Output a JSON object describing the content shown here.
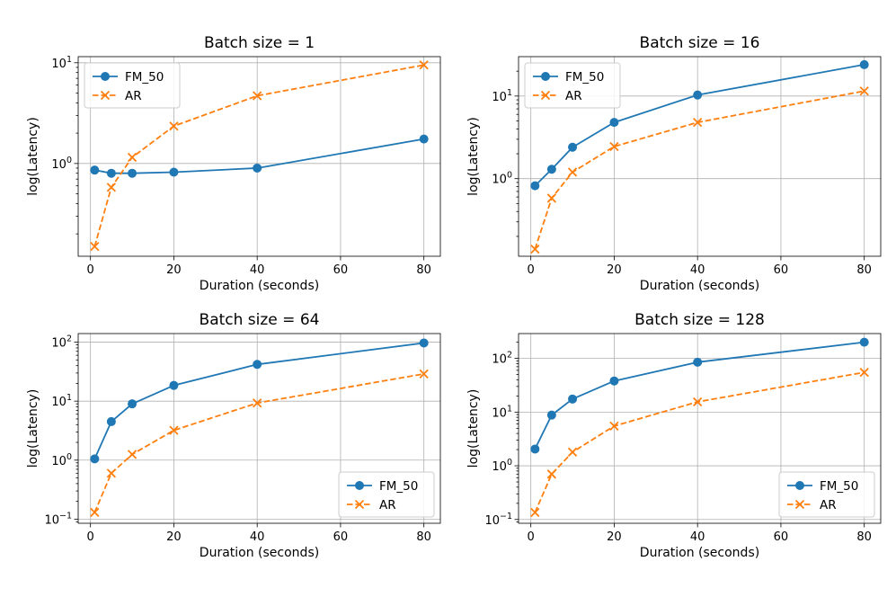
{
  "chart_data": [
    {
      "type": "line",
      "title": "Batch size = 1",
      "xlabel": "Duration (seconds)",
      "ylabel": "log(Latency)",
      "yscale": "log",
      "xlim": [
        -2.95,
        83.95
      ],
      "ylim": [
        0.12,
        11.5
      ],
      "xticks": [
        0,
        20,
        40,
        60,
        80
      ],
      "xtick_labels": [
        "0",
        "20",
        "40",
        "60",
        "80"
      ],
      "yticks": [
        1,
        10
      ],
      "ytick_labels": [
        {
          "base": "10",
          "exp": "0"
        },
        {
          "base": "10",
          "exp": "1"
        }
      ],
      "grid": true,
      "legend_position": "upper left",
      "x": [
        1,
        5,
        10,
        20,
        40,
        80
      ],
      "series": [
        {
          "name": "FM_50",
          "values": [
            0.86,
            0.8,
            0.8,
            0.82,
            0.9,
            1.75
          ],
          "color": "#1f77b4",
          "marker": "circle",
          "linestyle": "solid"
        },
        {
          "name": "AR",
          "values": [
            0.15,
            0.58,
            1.15,
            2.35,
            4.7,
            9.5
          ],
          "color": "#ff7f0e",
          "marker": "x",
          "linestyle": "dashed"
        }
      ]
    },
    {
      "type": "line",
      "title": "Batch size = 16",
      "xlabel": "Duration (seconds)",
      "ylabel": "log(Latency)",
      "yscale": "log",
      "xlim": [
        -2.95,
        83.95
      ],
      "ylim": [
        0.115,
        30
      ],
      "xticks": [
        0,
        20,
        40,
        60,
        80
      ],
      "xtick_labels": [
        "0",
        "20",
        "40",
        "60",
        "80"
      ],
      "yticks": [
        1,
        10
      ],
      "ytick_labels": [
        {
          "base": "10",
          "exp": "0"
        },
        {
          "base": "10",
          "exp": "1"
        }
      ],
      "grid": true,
      "legend_position": "upper left",
      "x": [
        1,
        5,
        10,
        20,
        40,
        80
      ],
      "series": [
        {
          "name": "FM_50",
          "values": [
            0.82,
            1.3,
            2.4,
            4.8,
            10.3,
            24
          ],
          "color": "#1f77b4",
          "marker": "circle",
          "linestyle": "solid"
        },
        {
          "name": "AR",
          "values": [
            0.14,
            0.58,
            1.2,
            2.45,
            4.8,
            11.5
          ],
          "color": "#ff7f0e",
          "marker": "x",
          "linestyle": "dashed"
        }
      ]
    },
    {
      "type": "line",
      "title": "Batch size = 64",
      "xlabel": "Duration (seconds)",
      "ylabel": "log(Latency)",
      "yscale": "log",
      "xlim": [
        -2.95,
        83.95
      ],
      "ylim": [
        0.085,
        140
      ],
      "xticks": [
        0,
        20,
        40,
        60,
        80
      ],
      "xtick_labels": [
        "0",
        "20",
        "40",
        "60",
        "80"
      ],
      "yticks": [
        0.1,
        1,
        10,
        100
      ],
      "ytick_labels": [
        {
          "base": "10",
          "exp": "−1"
        },
        {
          "base": "10",
          "exp": "0"
        },
        {
          "base": "10",
          "exp": "1"
        },
        {
          "base": "10",
          "exp": "2"
        }
      ],
      "grid": true,
      "legend_position": "lower right",
      "x": [
        1,
        5,
        10,
        20,
        40,
        80
      ],
      "series": [
        {
          "name": "FM_50",
          "values": [
            1.05,
            4.5,
            9,
            18.5,
            42,
            97
          ],
          "color": "#1f77b4",
          "marker": "circle",
          "linestyle": "solid"
        },
        {
          "name": "AR",
          "values": [
            0.13,
            0.6,
            1.25,
            3.2,
            9.3,
            29
          ],
          "color": "#ff7f0e",
          "marker": "x",
          "linestyle": "dashed"
        }
      ]
    },
    {
      "type": "line",
      "title": "Batch size = 128",
      "xlabel": "Duration (seconds)",
      "ylabel": "log(Latency)",
      "yscale": "log",
      "xlim": [
        -2.95,
        83.95
      ],
      "ylim": [
        0.085,
        290
      ],
      "xticks": [
        0,
        20,
        40,
        60,
        80
      ],
      "xtick_labels": [
        "0",
        "20",
        "40",
        "60",
        "80"
      ],
      "yticks": [
        0.1,
        1,
        10,
        100
      ],
      "ytick_labels": [
        {
          "base": "10",
          "exp": "−1"
        },
        {
          "base": "10",
          "exp": "0"
        },
        {
          "base": "10",
          "exp": "1"
        },
        {
          "base": "10",
          "exp": "2"
        }
      ],
      "grid": true,
      "legend_position": "lower right",
      "x": [
        1,
        5,
        10,
        20,
        40,
        80
      ],
      "series": [
        {
          "name": "FM_50",
          "values": [
            2.05,
            8.8,
            17.5,
            38,
            85,
            200
          ],
          "color": "#1f77b4",
          "marker": "circle",
          "linestyle": "solid"
        },
        {
          "name": "AR",
          "values": [
            0.135,
            0.7,
            1.8,
            5.5,
            15.5,
            55
          ],
          "color": "#ff7f0e",
          "marker": "x",
          "linestyle": "dashed"
        }
      ]
    }
  ]
}
